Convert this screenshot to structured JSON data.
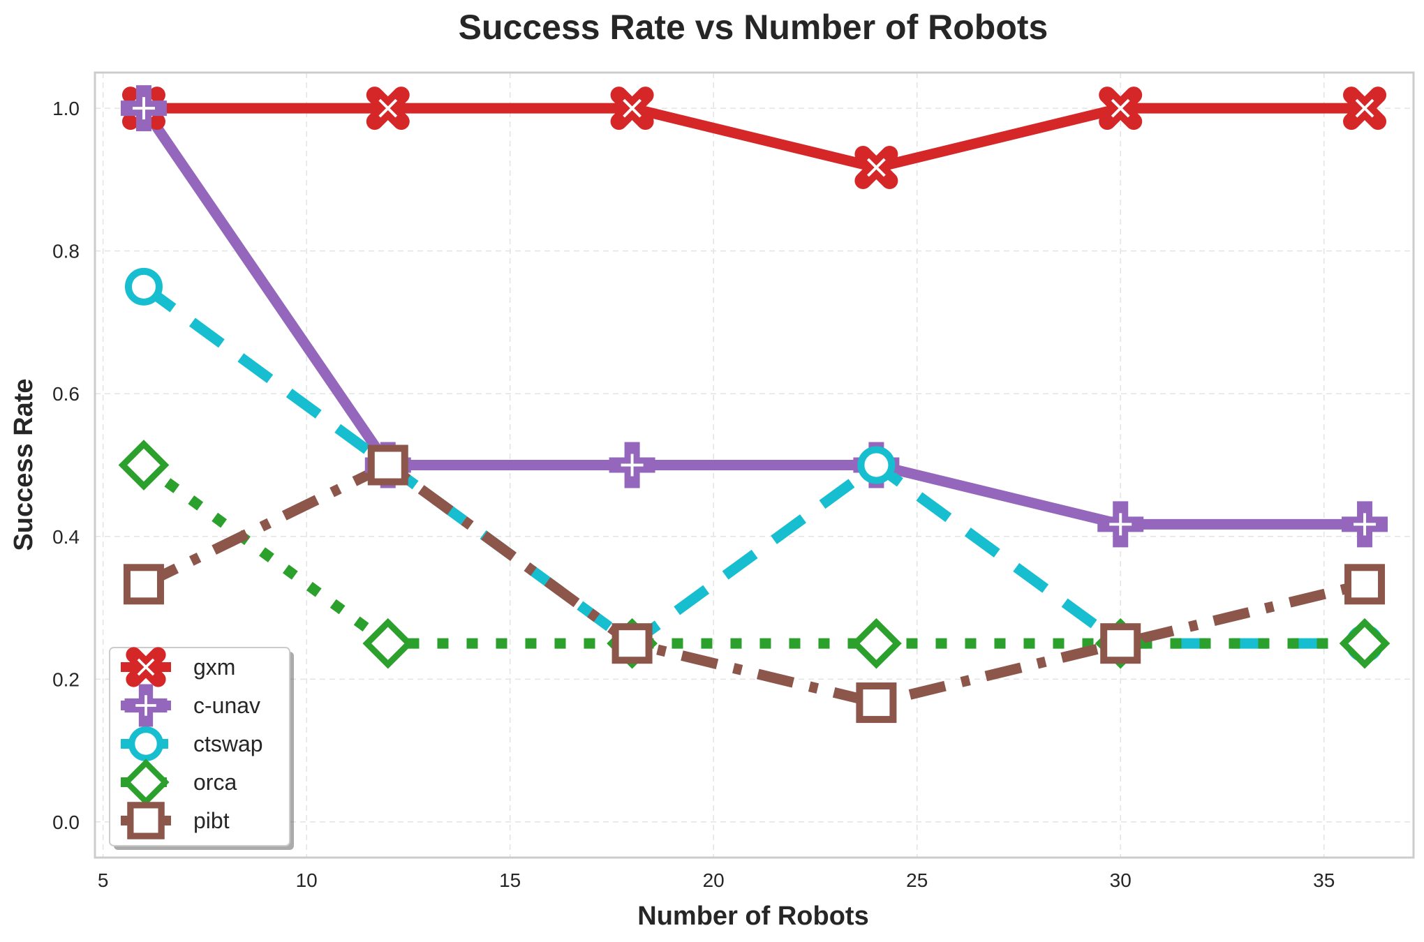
{
  "chart_data": {
    "type": "line",
    "title": "Success Rate vs Number of Robots",
    "xlabel": "Number of Robots",
    "ylabel": "Success Rate",
    "xlim": [
      4.8,
      37.2
    ],
    "ylim": [
      -0.05,
      1.05
    ],
    "xticks": [
      5,
      10,
      15,
      20,
      25,
      30,
      35
    ],
    "yticks": [
      0.0,
      0.2,
      0.4,
      0.6,
      0.8,
      1.0
    ],
    "xtick_labels": [
      "5",
      "10",
      "15",
      "20",
      "25",
      "30",
      "35"
    ],
    "ytick_labels": [
      "0.0",
      "0.2",
      "0.4",
      "0.6",
      "0.8",
      "1.0"
    ],
    "grid": true,
    "legend_position": "lower-left",
    "x": [
      6,
      12,
      18,
      24,
      30,
      36
    ],
    "series": [
      {
        "name": "gxm",
        "values": [
          1.0,
          1.0,
          1.0,
          0.917,
          1.0,
          1.0
        ],
        "color": "#d62728",
        "marker": "x-icon",
        "line_style": "solid"
      },
      {
        "name": "c-unav",
        "values": [
          1.0,
          0.5,
          0.5,
          0.5,
          0.417,
          0.417
        ],
        "color": "#9467bd",
        "marker": "plus-icon",
        "line_style": "solid"
      },
      {
        "name": "ctswap",
        "values": [
          0.75,
          0.5,
          0.25,
          0.5,
          0.25,
          0.25
        ],
        "color": "#17becf",
        "marker": "circle-icon",
        "line_style": "dashed"
      },
      {
        "name": "orca",
        "values": [
          0.5,
          0.25,
          0.25,
          0.25,
          0.25,
          0.25
        ],
        "color": "#2ca02c",
        "marker": "diamond-icon",
        "line_style": "dotted"
      },
      {
        "name": "pibt",
        "values": [
          0.333,
          0.5,
          0.25,
          0.167,
          0.25,
          0.333
        ],
        "color": "#8c564b",
        "marker": "square-icon",
        "line_style": "dashdot"
      }
    ]
  }
}
